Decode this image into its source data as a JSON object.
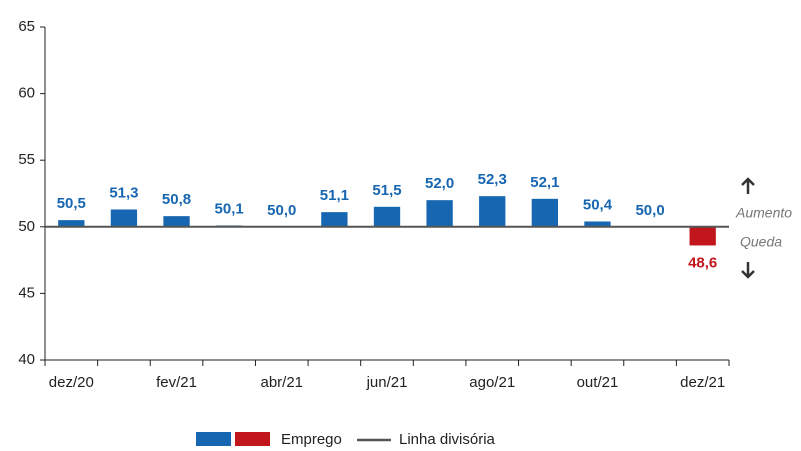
{
  "chart_data": {
    "type": "bar",
    "categories": [
      "dez/20",
      null,
      "fev/21",
      null,
      "abr/21",
      null,
      "jun/21",
      null,
      "ago/21",
      null,
      "out/21",
      null,
      "dez/21"
    ],
    "series": [
      {
        "name": "Emprego",
        "color": "#1766b1",
        "negative_color": "#c1161c",
        "values": [
          50.5,
          51.3,
          50.8,
          50.1,
          50.0,
          51.1,
          51.5,
          52.0,
          52.3,
          52.1,
          50.4,
          50.0,
          48.6
        ],
        "value_labels": [
          "50,5",
          "51,3",
          "50,8",
          "50,1",
          "50,0",
          "51,1",
          "51,5",
          "52,0",
          "52,3",
          "52,1",
          "50,4",
          "50,0",
          "48,6"
        ]
      }
    ],
    "reference_line": 50,
    "reference_name": "Linha divisória",
    "reference_color": "#555555",
    "annotations": [
      "Aumento",
      "Queda"
    ],
    "ylim": [
      40,
      65
    ],
    "yticks": [
      40,
      45,
      50,
      55,
      60,
      65
    ],
    "grid": false
  }
}
